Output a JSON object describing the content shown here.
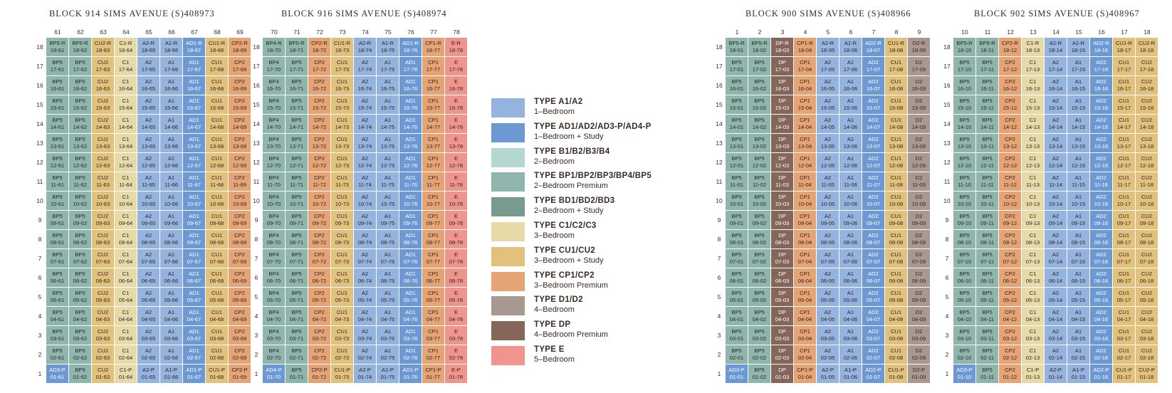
{
  "palette": {
    "A": "#95b3df",
    "AD": "#6c99d4",
    "B": "#b4d8cf",
    "BP": "#8fb6ac",
    "BD": "#789a8f",
    "C": "#e6dba8",
    "CU": "#e2c17c",
    "CP": "#e6a474",
    "D": "#a89890",
    "DP": "#86665a",
    "E": "#f0958d"
  },
  "legend": [
    {
      "key": "A",
      "type": "TYPE A1/A2",
      "desc": "1–Bedroom"
    },
    {
      "key": "AD",
      "type": "TYPE AD1/AD2/AD3-P/AD4-P",
      "desc": "1–Bedroom + Study"
    },
    {
      "key": "B",
      "type": "TYPE B1/B2/B3/B4",
      "desc": "2–Bedroom"
    },
    {
      "key": "BP",
      "type": "TYPE BP1/BP2/BP3/BP4/BP5",
      "desc": "2–Bedroom Premium"
    },
    {
      "key": "BD",
      "type": "TYPE BD1/BD2/BD3",
      "desc": "2–Bedroom + Study"
    },
    {
      "key": "C",
      "type": "TYPE C1/C2/C3",
      "desc": "3–Bedroom"
    },
    {
      "key": "CU",
      "type": "TYPE CU1/CU2",
      "desc": "3–Bedroom + Study"
    },
    {
      "key": "CP",
      "type": "TYPE CP1/CP2",
      "desc": "3–Bedroom Premium"
    },
    {
      "key": "D",
      "type": "TYPE D1/D2",
      "desc": "4–Bedroom"
    },
    {
      "key": "DP",
      "type": "TYPE DP",
      "desc": "4–Bedroom Premium"
    },
    {
      "key": "E",
      "type": "TYPE E",
      "desc": "5–Bedroom"
    }
  ],
  "blocks": [
    {
      "title": "BLOCK 914 SIMS AVENUE (S)408973",
      "stacks": [
        "61",
        "62",
        "63",
        "64",
        "65",
        "66",
        "67",
        "68",
        "69"
      ],
      "colors": [
        "BP",
        "BP",
        "CU",
        "C",
        "A",
        "A",
        "AD",
        "CU",
        "CP"
      ],
      "top": [
        "BP5-R",
        "BP5-R",
        "CU2-R",
        "C1-R",
        "A2-R",
        "A1-R",
        "AD1-R",
        "CU1-R",
        "CP2-R"
      ],
      "mid": [
        "BP5",
        "BP5",
        "CU2",
        "C1",
        "A2",
        "A1",
        "AD1",
        "CU1",
        "CP2"
      ],
      "bottom": [
        "AD3-P",
        "BP5",
        "CU2",
        "C1-P",
        "A2-P",
        "A1-P",
        "AD1-P",
        "CU1-P",
        "CP2-P"
      ],
      "bottom_colors": [
        "AD",
        "BP",
        "CU",
        "C",
        "A",
        "A",
        "AD",
        "CU",
        "CP"
      ]
    },
    {
      "title": "BLOCK 916 SIMS AVENUE (S)408974",
      "stacks": [
        "70",
        "71",
        "72",
        "73",
        "74",
        "75",
        "76",
        "77",
        "78"
      ],
      "colors": [
        "BP",
        "BP",
        "CP",
        "CU",
        "A",
        "A",
        "AD",
        "CP",
        "E"
      ],
      "top": [
        "BP4-R",
        "BP5-R",
        "CP2-R",
        "CU1-R",
        "A2-R",
        "A1-R",
        "AD1-R",
        "CP1-R",
        "E-R"
      ],
      "mid": [
        "BP4",
        "BP5",
        "CP2",
        "CU1",
        "A2",
        "A1",
        "AD1",
        "CP1",
        "E"
      ],
      "bottom": [
        "AD4-P",
        "BP5",
        "CP2-P",
        "CU1-P",
        "A2-P",
        "A1-P",
        "AD1-P",
        "CP1-P",
        "E-P"
      ],
      "bottom_colors": [
        "AD",
        "BP",
        "CP",
        "CU",
        "A",
        "A",
        "AD",
        "CP",
        "E"
      ]
    },
    {
      "title": "BLOCK 900 SIMS AVENUE (S)408966",
      "stacks": [
        "1",
        "2",
        "3",
        "4",
        "5",
        "6",
        "7",
        "8",
        "9"
      ],
      "colors": [
        "BP",
        "BP",
        "DP",
        "CP",
        "A",
        "A",
        "AD",
        "CU",
        "D"
      ],
      "top": [
        "BP5-R",
        "BP5-R",
        "DP-R",
        "CP1-R",
        "A2-R",
        "A1-R",
        "AD2-R",
        "CU1-R",
        "D2-R"
      ],
      "mid": [
        "BP5",
        "BP5",
        "DP",
        "CP1",
        "A2",
        "A1",
        "AD2",
        "CU1",
        "D2"
      ],
      "bottom": [
        "AD3-P",
        "BP5",
        "DP",
        "CP1-P",
        "A2-P",
        "A1-P",
        "AD2-P",
        "CU1-P",
        "D2-P"
      ],
      "bottom_colors": [
        "AD",
        "BP",
        "DP",
        "CP",
        "A",
        "A",
        "AD",
        "CU",
        "D"
      ]
    },
    {
      "title": "BLOCK 902 SIMS AVENUE (S)408967",
      "stacks": [
        "10",
        "11",
        "12",
        "13",
        "14",
        "15",
        "16",
        "17",
        "18"
      ],
      "colors": [
        "BP",
        "BP",
        "CP",
        "C",
        "A",
        "A",
        "AD",
        "CU",
        "CU"
      ],
      "top": [
        "BP5-R",
        "BP5-R",
        "CP2-R",
        "C1-R",
        "A2-R",
        "A1-R",
        "AD2-R",
        "CU1-R",
        "CU2-R"
      ],
      "mid": [
        "BP5",
        "BP5",
        "CP2",
        "C1",
        "A2",
        "A1",
        "AD2",
        "CU1",
        "CU2"
      ],
      "bottom": [
        "AD3-P",
        "BP5",
        "CP2",
        "C1-P",
        "A2-P",
        "A1-P",
        "AD2-P",
        "CU1-P",
        "CU2-P"
      ],
      "bottom_colors": [
        "AD",
        "BP",
        "CP",
        "C",
        "A",
        "A",
        "AD",
        "CU",
        "CU"
      ]
    }
  ],
  "floors": [
    "18",
    "17",
    "16",
    "15",
    "14",
    "13",
    "12",
    "11",
    "10",
    "9",
    "8",
    "7",
    "6",
    "5",
    "4",
    "3",
    "2",
    "1"
  ],
  "floor_codes": [
    "18",
    "17",
    "16",
    "15",
    "14",
    "13",
    "12",
    "11",
    "10",
    "09",
    "08",
    "07",
    "06",
    "05",
    "04",
    "03",
    "02",
    "01"
  ]
}
